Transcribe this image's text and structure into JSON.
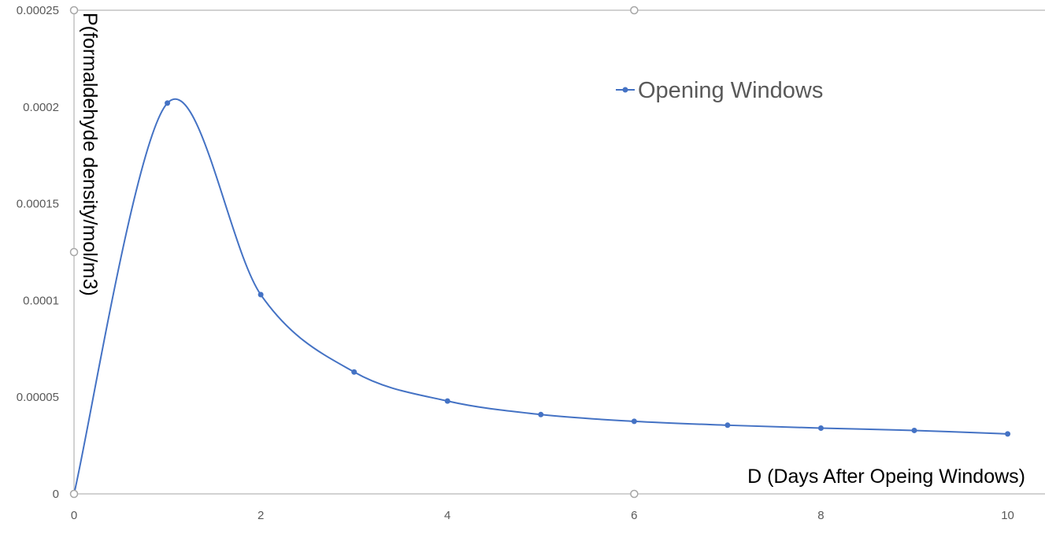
{
  "chart_data": {
    "type": "line",
    "smoothed": true,
    "x": [
      0,
      1,
      2,
      3,
      4,
      5,
      6,
      7,
      8,
      9,
      10
    ],
    "series": [
      {
        "name": "Opening Windows",
        "color": "#4472C4",
        "values": [
          0,
          0.000202,
          0.000103,
          6.3e-05,
          4.8e-05,
          4.1e-05,
          3.75e-05,
          3.55e-05,
          3.4e-05,
          3.28e-05,
          3.1e-05
        ]
      }
    ],
    "xlabel": "D (Days After Opeing Windows)",
    "ylabel": "P(formaldehyde density/mol/m3)",
    "xlim": [
      0,
      10.4
    ],
    "ylim": [
      0,
      0.00025
    ],
    "x_ticks": [
      "0",
      "2",
      "4",
      "6",
      "8",
      "10"
    ],
    "y_ticks": [
      "0",
      "0.00005",
      "0.0001",
      "0.00015",
      "0.0002",
      "0.00025"
    ],
    "grid": false,
    "legend_position": "top-right",
    "axis_color": "#A6A6A6"
  }
}
